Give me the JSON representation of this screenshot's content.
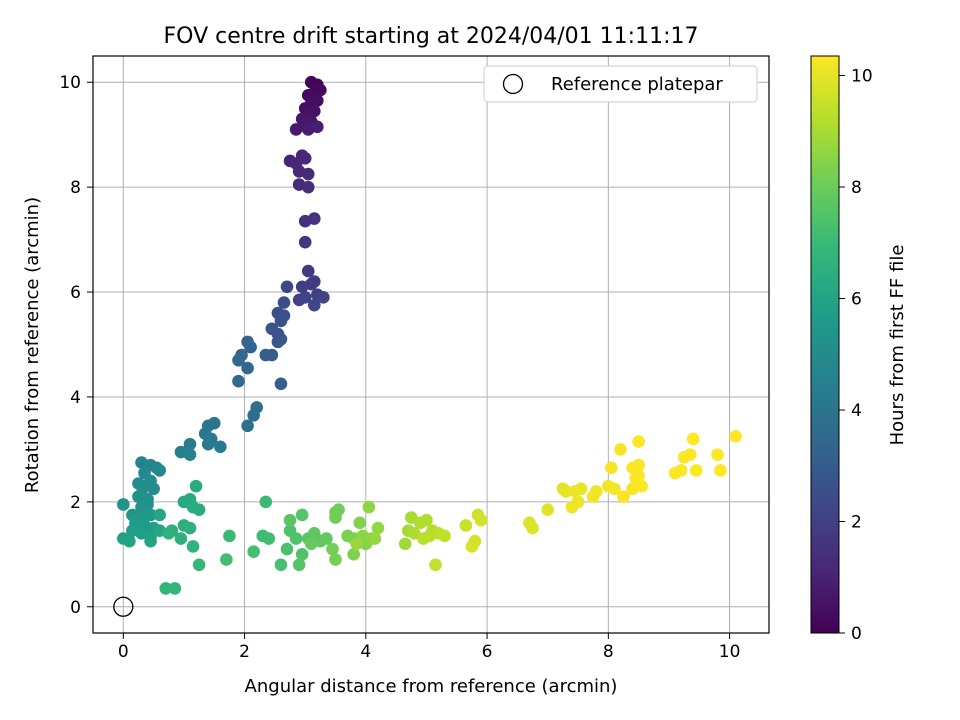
{
  "chart_data": {
    "type": "scatter",
    "title": "FOV centre drift starting at 2024/04/01 11:11:17",
    "xlabel": "Angular distance from reference (arcmin)",
    "ylabel": "Rotation from reference (arcmin)",
    "xlim": [
      -0.5,
      10.65
    ],
    "ylim": [
      -0.5,
      10.5
    ],
    "xticks": [
      0,
      2,
      4,
      6,
      8,
      10
    ],
    "yticks": [
      0,
      2,
      4,
      6,
      8,
      10
    ],
    "grid": true,
    "legend": {
      "placement": "top-right",
      "entries": [
        "Reference platepar"
      ]
    },
    "reference_point": {
      "x": 0,
      "y": 0,
      "label": "Reference platepar"
    },
    "colorbar": {
      "label": "Hours from first FF file",
      "range": [
        0,
        10.35
      ],
      "ticks": [
        0,
        2,
        4,
        6,
        8,
        10
      ],
      "colormap": "viridis"
    },
    "series": [
      {
        "color_value": "hours",
        "points": [
          [
            3.1,
            10.0,
            0.1
          ],
          [
            3.2,
            9.95,
            0.15
          ],
          [
            3.25,
            9.85,
            0.2
          ],
          [
            3.15,
            9.8,
            0.25
          ],
          [
            3.05,
            9.75,
            0.3
          ],
          [
            3.2,
            9.65,
            0.35
          ],
          [
            3.1,
            9.6,
            0.4
          ],
          [
            3.0,
            9.5,
            0.45
          ],
          [
            3.15,
            9.45,
            0.5
          ],
          [
            3.05,
            9.35,
            0.55
          ],
          [
            2.95,
            9.3,
            0.6
          ],
          [
            3.1,
            9.25,
            0.65
          ],
          [
            3.0,
            9.2,
            0.7
          ],
          [
            2.85,
            9.1,
            0.75
          ],
          [
            3.05,
            9.1,
            0.8
          ],
          [
            3.2,
            9.15,
            0.85
          ],
          [
            2.75,
            8.5,
            1.0
          ],
          [
            2.85,
            8.45,
            1.05
          ],
          [
            2.95,
            8.6,
            1.1
          ],
          [
            3.0,
            8.55,
            1.15
          ],
          [
            2.9,
            8.3,
            1.2
          ],
          [
            3.05,
            8.25,
            1.25
          ],
          [
            2.9,
            8.05,
            1.3
          ],
          [
            3.05,
            8.0,
            1.35
          ],
          [
            3.0,
            7.35,
            1.5
          ],
          [
            3.15,
            7.4,
            1.55
          ],
          [
            3.0,
            6.95,
            1.6
          ],
          [
            3.05,
            6.4,
            1.75
          ],
          [
            3.1,
            6.15,
            1.8
          ],
          [
            3.15,
            6.2,
            1.85
          ],
          [
            2.95,
            6.1,
            1.9
          ],
          [
            3.2,
            5.95,
            1.95
          ],
          [
            3.0,
            5.9,
            2.0
          ],
          [
            2.9,
            5.85,
            2.05
          ],
          [
            3.3,
            5.9,
            2.1
          ],
          [
            3.15,
            5.75,
            2.15
          ],
          [
            2.7,
            6.1,
            2.2
          ],
          [
            2.65,
            5.8,
            2.4
          ],
          [
            2.55,
            5.6,
            2.5
          ],
          [
            2.65,
            5.55,
            2.55
          ],
          [
            2.6,
            5.45,
            2.6
          ],
          [
            2.45,
            5.3,
            2.7
          ],
          [
            2.55,
            5.2,
            2.75
          ],
          [
            2.55,
            5.05,
            2.8
          ],
          [
            2.6,
            5.1,
            2.85
          ],
          [
            2.35,
            4.8,
            2.95
          ],
          [
            2.45,
            4.8,
            3.0
          ],
          [
            2.6,
            4.25,
            3.1
          ],
          [
            2.05,
            5.05,
            3.3
          ],
          [
            2.1,
            4.95,
            3.35
          ],
          [
            1.95,
            4.8,
            3.4
          ],
          [
            1.9,
            4.7,
            3.45
          ],
          [
            2.05,
            4.55,
            3.5
          ],
          [
            1.9,
            4.3,
            3.55
          ],
          [
            2.2,
            3.8,
            3.7
          ],
          [
            2.15,
            3.65,
            3.75
          ],
          [
            2.05,
            3.45,
            3.8
          ],
          [
            1.5,
            3.5,
            4.0
          ],
          [
            1.4,
            3.45,
            4.05
          ],
          [
            1.35,
            3.3,
            4.1
          ],
          [
            1.45,
            3.2,
            4.15
          ],
          [
            1.4,
            3.1,
            4.2
          ],
          [
            1.6,
            3.05,
            4.25
          ],
          [
            1.1,
            3.1,
            4.3
          ],
          [
            1.05,
            2.95,
            4.4
          ],
          [
            0.95,
            2.95,
            4.45
          ],
          [
            1.1,
            2.9,
            4.5
          ],
          [
            0.3,
            2.75,
            4.7
          ],
          [
            0.45,
            2.7,
            4.75
          ],
          [
            0.55,
            2.65,
            4.8
          ],
          [
            0.35,
            2.55,
            4.85
          ],
          [
            0.6,
            2.6,
            4.9
          ],
          [
            0.25,
            2.35,
            4.95
          ],
          [
            0.45,
            2.4,
            5.0
          ],
          [
            0.35,
            2.3,
            5.05
          ],
          [
            0.5,
            2.25,
            5.1
          ],
          [
            0.3,
            2.15,
            5.15
          ],
          [
            0.4,
            2.05,
            5.2
          ],
          [
            0.25,
            2.1,
            5.25
          ],
          [
            0.4,
            1.95,
            5.3
          ],
          [
            0.0,
            1.95,
            5.35
          ],
          [
            0.3,
            1.9,
            5.4
          ],
          [
            0.15,
            1.75,
            5.45
          ],
          [
            0.3,
            1.7,
            5.5
          ],
          [
            0.45,
            1.75,
            5.55
          ],
          [
            0.2,
            1.6,
            5.6
          ],
          [
            0.35,
            1.55,
            5.65
          ],
          [
            0.5,
            1.5,
            5.7
          ],
          [
            0.15,
            1.45,
            5.75
          ],
          [
            0.3,
            1.4,
            5.8
          ],
          [
            0.45,
            1.35,
            5.85
          ],
          [
            0.0,
            1.3,
            5.9
          ],
          [
            0.1,
            1.25,
            5.95
          ],
          [
            0.45,
            1.25,
            6.0
          ],
          [
            0.6,
            1.45,
            6.05
          ],
          [
            0.6,
            1.75,
            6.1
          ],
          [
            1.0,
            2.0,
            6.2
          ],
          [
            1.1,
            2.05,
            6.25
          ],
          [
            1.2,
            2.3,
            6.3
          ],
          [
            1.15,
            1.9,
            6.35
          ],
          [
            1.25,
            1.85,
            6.4
          ],
          [
            0.8,
            1.45,
            6.45
          ],
          [
            1.0,
            1.55,
            6.5
          ],
          [
            1.1,
            1.5,
            6.55
          ],
          [
            0.95,
            1.3,
            6.6
          ],
          [
            0.75,
            1.4,
            6.65
          ],
          [
            1.15,
            1.15,
            6.7
          ],
          [
            0.7,
            0.35,
            6.75
          ],
          [
            0.85,
            0.35,
            6.8
          ],
          [
            1.25,
            0.8,
            6.85
          ],
          [
            1.75,
            1.35,
            7.0
          ],
          [
            2.35,
            2.0,
            7.05
          ],
          [
            2.3,
            1.35,
            7.1
          ],
          [
            2.4,
            1.3,
            7.15
          ],
          [
            1.7,
            0.9,
            7.2
          ],
          [
            2.15,
            1.05,
            7.25
          ],
          [
            2.6,
            0.8,
            7.3
          ],
          [
            2.7,
            1.1,
            7.35
          ],
          [
            2.75,
            1.45,
            7.4
          ],
          [
            2.85,
            1.3,
            7.45
          ],
          [
            2.95,
            1.0,
            7.5
          ],
          [
            2.9,
            0.8,
            7.55
          ],
          [
            2.95,
            1.75,
            7.6
          ],
          [
            2.75,
            1.65,
            7.65
          ],
          [
            3.05,
            1.3,
            7.7
          ],
          [
            3.15,
            1.4,
            7.75
          ],
          [
            3.25,
            1.25,
            7.8
          ],
          [
            3.35,
            1.3,
            7.85
          ],
          [
            3.1,
            1.2,
            7.9
          ],
          [
            3.5,
            1.8,
            8.0
          ],
          [
            3.55,
            1.85,
            8.05
          ],
          [
            3.5,
            1.7,
            8.1
          ],
          [
            3.45,
            1.1,
            8.15
          ],
          [
            3.5,
            0.9,
            8.2
          ],
          [
            3.7,
            1.35,
            8.25
          ],
          [
            3.8,
            1.3,
            8.3
          ],
          [
            3.8,
            1.0,
            8.35
          ],
          [
            3.9,
            1.6,
            8.4
          ],
          [
            4.0,
            1.2,
            8.45
          ],
          [
            3.95,
            1.35,
            8.5
          ],
          [
            4.1,
            1.3,
            8.55
          ],
          [
            4.05,
            1.9,
            8.6
          ],
          [
            4.2,
            1.5,
            8.65
          ],
          [
            4.15,
            1.3,
            8.7
          ],
          [
            3.85,
            1.2,
            8.75
          ],
          [
            4.65,
            1.2,
            8.9
          ],
          [
            4.7,
            1.45,
            8.95
          ],
          [
            4.75,
            1.7,
            9.0
          ],
          [
            4.8,
            1.4,
            9.05
          ],
          [
            4.9,
            1.6,
            9.1
          ],
          [
            5.0,
            1.65,
            9.15
          ],
          [
            5.1,
            1.45,
            9.2
          ],
          [
            5.05,
            1.35,
            9.25
          ],
          [
            4.95,
            1.3,
            9.3
          ],
          [
            5.2,
            1.4,
            9.35
          ],
          [
            5.3,
            1.35,
            9.4
          ],
          [
            5.15,
            0.8,
            9.45
          ],
          [
            5.65,
            1.55,
            9.55
          ],
          [
            5.85,
            1.75,
            9.6
          ],
          [
            5.9,
            1.65,
            9.65
          ],
          [
            5.8,
            1.25,
            9.7
          ],
          [
            5.75,
            1.15,
            9.75
          ],
          [
            6.7,
            1.6,
            9.8
          ],
          [
            6.75,
            1.5,
            9.85
          ],
          [
            7.0,
            1.85,
            9.9
          ],
          [
            7.25,
            2.25,
            9.95
          ],
          [
            7.3,
            2.2,
            10.0
          ],
          [
            7.45,
            2.2,
            10.05
          ],
          [
            7.55,
            2.25,
            10.05
          ],
          [
            7.4,
            1.9,
            10.1
          ],
          [
            7.5,
            2.0,
            10.1
          ],
          [
            7.75,
            2.1,
            10.15
          ],
          [
            7.8,
            2.2,
            10.15
          ],
          [
            8.0,
            2.3,
            10.2
          ],
          [
            8.1,
            2.25,
            10.2
          ],
          [
            8.05,
            2.65,
            10.2
          ],
          [
            8.2,
            3.0,
            10.25
          ],
          [
            8.25,
            2.1,
            10.25
          ],
          [
            8.4,
            2.25,
            10.25
          ],
          [
            8.4,
            2.65,
            10.3
          ],
          [
            8.5,
            2.5,
            10.3
          ],
          [
            8.55,
            2.3,
            10.3
          ],
          [
            8.45,
            2.45,
            10.3
          ],
          [
            8.5,
            2.7,
            10.3
          ],
          [
            8.5,
            3.15,
            10.3
          ],
          [
            9.1,
            2.55,
            10.32
          ],
          [
            9.2,
            2.6,
            10.32
          ],
          [
            9.25,
            2.85,
            10.33
          ],
          [
            9.35,
            2.9,
            10.33
          ],
          [
            9.45,
            2.6,
            10.33
          ],
          [
            9.4,
            3.2,
            10.34
          ],
          [
            9.8,
            2.9,
            10.34
          ],
          [
            9.85,
            2.6,
            10.34
          ],
          [
            10.1,
            3.25,
            10.35
          ]
        ]
      }
    ]
  }
}
